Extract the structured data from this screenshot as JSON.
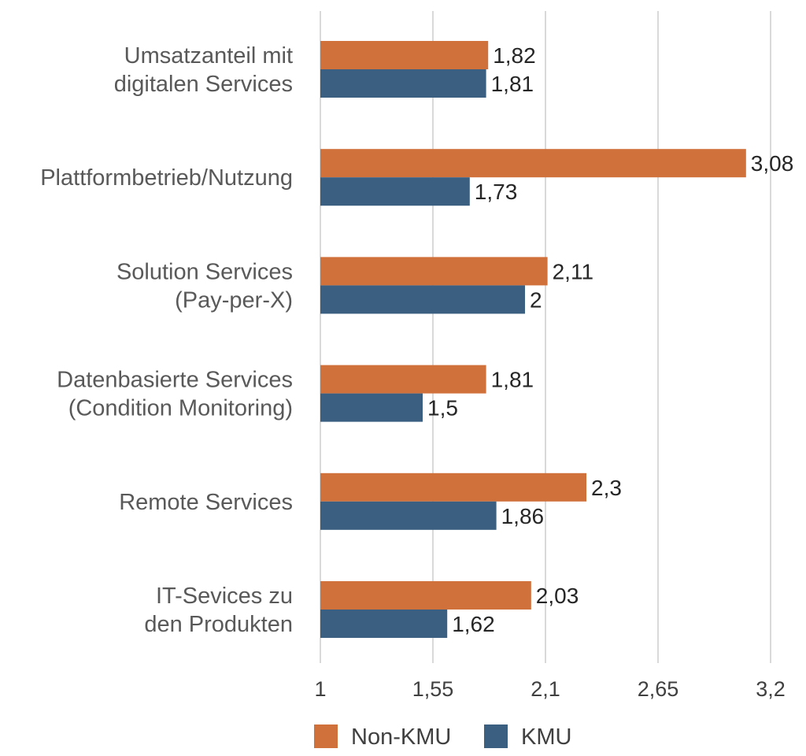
{
  "chart_data": {
    "type": "bar",
    "orientation": "horizontal",
    "categories": [
      [
        "Umsatzanteil mit",
        "digitalen Services"
      ],
      [
        "Plattformbetrieb/Nutzung"
      ],
      [
        "Solution Services",
        "(Pay-per-X)"
      ],
      [
        "Datenbasierte Services",
        "(Condition Monitoring)"
      ],
      [
        "Remote Services"
      ],
      [
        "IT-Sevices zu",
        "den Produkten"
      ]
    ],
    "series": [
      {
        "name": "Non-KMU",
        "color": "#D0703A",
        "values": [
          1.82,
          3.08,
          2.11,
          1.81,
          2.3,
          2.03
        ],
        "labels": [
          "1,82",
          "3,08",
          "2,11",
          "1,81",
          "2,3",
          "2,03"
        ]
      },
      {
        "name": "KMU",
        "color": "#3A5F80",
        "values": [
          1.81,
          1.73,
          2,
          1.5,
          1.86,
          1.62
        ],
        "labels": [
          "1,81",
          "1,73",
          "2",
          "1,5",
          "1,86",
          "1,62"
        ]
      }
    ],
    "xlim": [
      1,
      3.2
    ],
    "xticks": [
      1,
      1.55,
      2.1,
      2.65,
      3.2
    ],
    "xtick_labels": [
      "1",
      "1,55",
      "2,1",
      "2,65",
      "3,2"
    ],
    "grid": true,
    "legend_position": "bottom",
    "title": "",
    "xlabel": "",
    "ylabel": ""
  }
}
